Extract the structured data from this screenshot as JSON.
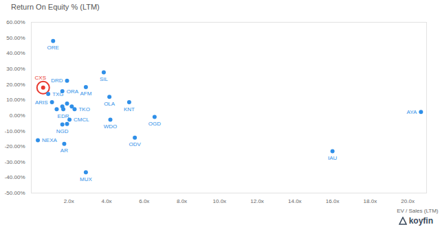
{
  "chart_data": {
    "type": "scatter",
    "title": "Return On Equity % (LTM)",
    "x_label": "EV / Sales (LTM)",
    "caption": "koyfin",
    "labels": [
      "ORE",
      "CXS",
      "TXG",
      "DRD",
      "ORA",
      "AFM",
      "SIL",
      "OLA",
      "KNT",
      "ARIS",
      null,
      null,
      null,
      "EDR",
      "TKO",
      null,
      "CMCL",
      "NGD",
      null,
      "WDO",
      "OGD",
      "ODV",
      "NEXA",
      "AR",
      "MUX",
      "IAU",
      "AYA"
    ],
    "x": [
      1.16,
      0.63,
      0.9,
      1.9,
      1.65,
      2.9,
      3.85,
      4.15,
      5.2,
      1.1,
      1.9,
      1.65,
      2.15,
      1.7,
      2.3,
      1.35,
      2.03,
      1.65,
      1.9,
      4.2,
      6.55,
      5.5,
      0.35,
      1.75,
      2.9,
      16,
      20.7
    ],
    "values": [
      48,
      17.9,
      13.8,
      22.3,
      15.6,
      18.3,
      27.7,
      12,
      8.5,
      8.5,
      7.6,
      5.8,
      5.8,
      4,
      4,
      4,
      -2.7,
      -5.8,
      -5.5,
      -2.7,
      -1,
      -14.3,
      -16,
      -18.3,
      -36.6,
      -23,
      2.2
    ],
    "color": "#2f8fe8",
    "colors": [
      "#2f8fe8",
      "#e8392f",
      "#2f8fe8",
      "#2f8fe8",
      "#2f8fe8",
      "#2f8fe8",
      "#2f8fe8",
      "#2f8fe8",
      "#2f8fe8",
      "#2f8fe8",
      "#2f8fe8",
      "#2f8fe8",
      "#2f8fe8",
      "#2f8fe8",
      "#2f8fe8",
      "#2f8fe8",
      "#2f8fe8",
      "#2f8fe8",
      "#2f8fe8",
      "#2f8fe8",
      "#2f8fe8",
      "#2f8fe8",
      "#2f8fe8",
      "#2f8fe8",
      "#2f8fe8",
      "#2f8fe8",
      "#2f8fe8"
    ],
    "xlim": [
      0,
      21
    ],
    "ylim": [
      -50,
      60
    ],
    "xticks": [
      {
        "value": 2,
        "label": "2.0x"
      },
      {
        "value": 4,
        "label": "4.0x"
      },
      {
        "value": 6,
        "label": "6.0x"
      },
      {
        "value": 8,
        "label": "8.0x"
      },
      {
        "value": 10,
        "label": "10.0x"
      },
      {
        "value": 12,
        "label": "12.0x"
      },
      {
        "value": 14,
        "label": "14.0x"
      },
      {
        "value": 16,
        "label": "16.0x"
      },
      {
        "value": 18,
        "label": "18.0x"
      },
      {
        "value": 20,
        "label": "20.0x"
      }
    ],
    "yticks": [
      {
        "value": -50,
        "label": "-50.00%"
      },
      {
        "value": -40,
        "label": "-40.00%"
      },
      {
        "value": -30,
        "label": "-30.00%"
      },
      {
        "value": -20,
        "label": "-20.00%"
      },
      {
        "value": -10,
        "label": "-10.00%"
      },
      {
        "value": 0,
        "label": "0.00%"
      },
      {
        "value": 10,
        "label": "10.00%"
      },
      {
        "value": 20,
        "label": "20.00%"
      },
      {
        "value": 30,
        "label": "30.00%"
      },
      {
        "value": 40,
        "label": "40.00%"
      },
      {
        "value": 50,
        "label": "50.00%"
      },
      {
        "value": 60,
        "label": "60.00%"
      }
    ],
    "grid": false
  }
}
